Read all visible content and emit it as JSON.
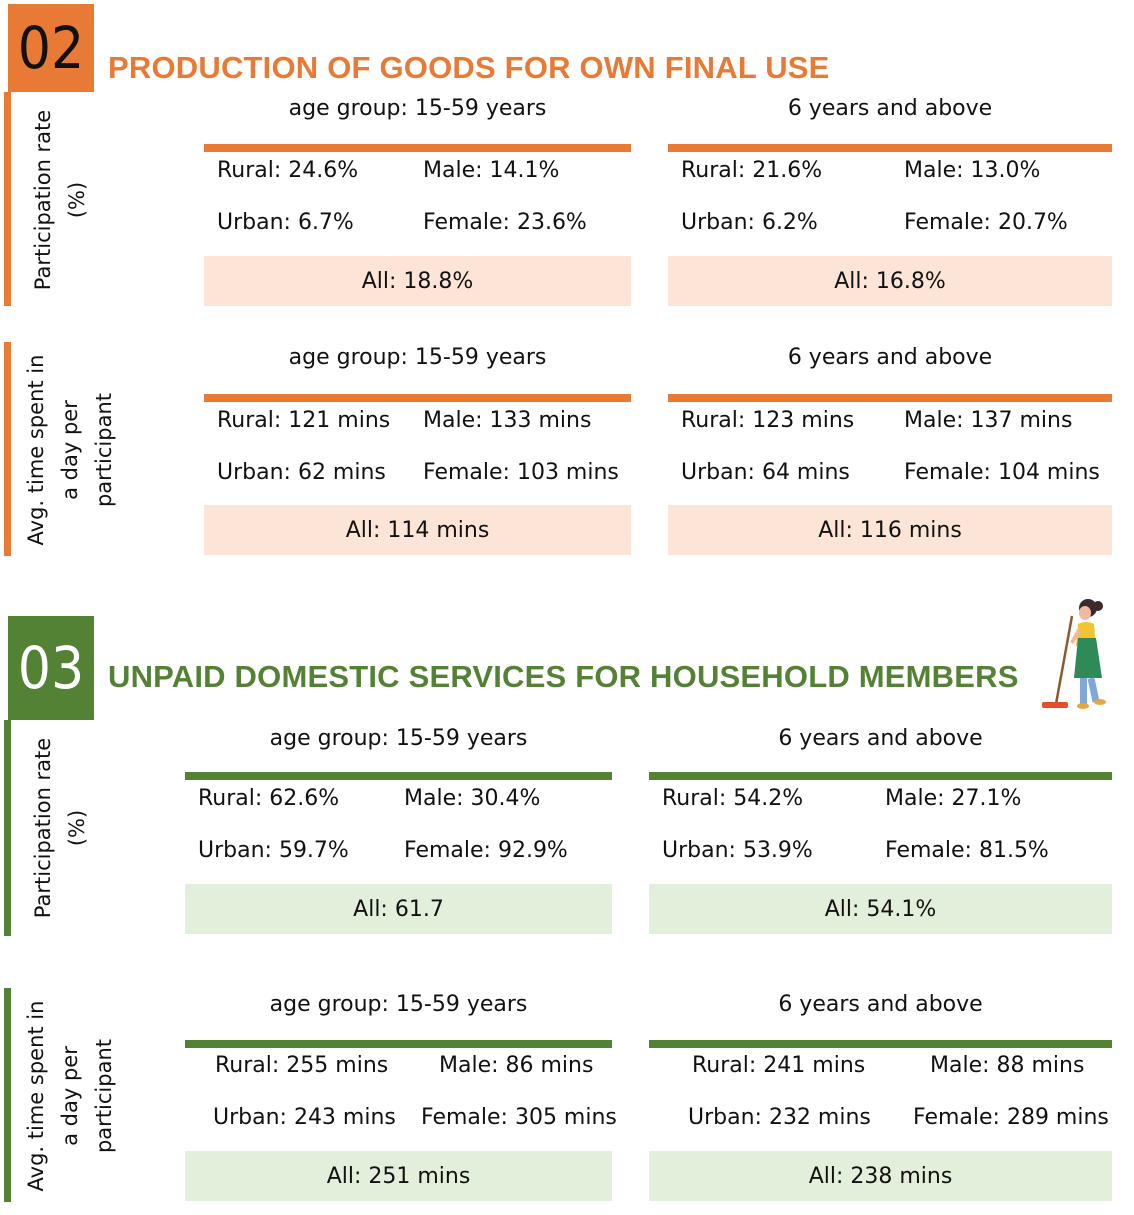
{
  "colors": {
    "orange": "#E87A35",
    "orange_title": "#E87A35",
    "orange_fill": "#FCE4D6",
    "green": "#548235",
    "green_title": "#548235",
    "green_fill": "#E2EFDA"
  },
  "section02": {
    "number": "02",
    "title": "PRODUCTION OF GOODS FOR OWN FINAL USE",
    "participation": {
      "label_line1": "Participation rate",
      "label_line2": "(%)",
      "left": {
        "header": "age group: 15-59 years",
        "rural": "Rural: 24.6%",
        "male": "Male: 14.1%",
        "urban": "Urban: 6.7%",
        "female": "Female: 23.6%",
        "all": "All: 18.8%"
      },
      "right": {
        "header": "6 years and above",
        "rural": "Rural: 21.6%",
        "male": "Male: 13.0%",
        "urban": "Urban: 6.2%",
        "female": "Female: 20.7%",
        "all": "All: 16.8%"
      }
    },
    "time": {
      "label_line1": "Avg. time spent in",
      "label_line2": "a day per",
      "label_line3": "participant",
      "left": {
        "header": "age group: 15-59 years",
        "rural": "Rural: 121 mins",
        "male": "Male: 133 mins",
        "urban": "Urban: 62 mins",
        "female": "Female: 103 mins",
        "all": "All: 114 mins"
      },
      "right": {
        "header": "6 years and above",
        "rural": "Rural: 123 mins",
        "male": "Male: 137 mins",
        "urban": "Urban: 64 mins",
        "female": "Female: 104 mins",
        "all": "All: 116 mins"
      }
    }
  },
  "section03": {
    "number": "03",
    "title": "UNPAID DOMESTIC SERVICES FOR HOUSEHOLD MEMBERS",
    "illustration_icon": "woman-sweeping-icon",
    "participation": {
      "label_line1": "Participation rate",
      "label_line2": "(%)",
      "left": {
        "header": "age group: 15-59 years",
        "rural": "Rural: 62.6%",
        "male": "Male: 30.4%",
        "urban": "Urban: 59.7%",
        "female": "Female: 92.9%",
        "all": "All: 61.7"
      },
      "right": {
        "header": "6 years and above",
        "rural": "Rural: 54.2%",
        "male": "Male: 27.1%",
        "urban": "Urban: 53.9%",
        "female": "Female: 81.5%",
        "all": "All: 54.1%"
      }
    },
    "time": {
      "label_line1": "Avg. time spent in",
      "label_line2": "a day per",
      "label_line3": "participant",
      "left": {
        "header": "age group: 15-59 years",
        "rural": "Rural: 255 mins",
        "male": "Male: 86 mins",
        "urban": "Urban: 243 mins",
        "female": "Female: 305 mins",
        "all": "All: 251 mins"
      },
      "right": {
        "header": "6 years and above",
        "rural": "Rural: 241 mins",
        "male": "Male: 88 mins",
        "urban": "Urban: 232 mins",
        "female": "Female: 289 mins",
        "all": "All: 238 mins"
      }
    }
  }
}
